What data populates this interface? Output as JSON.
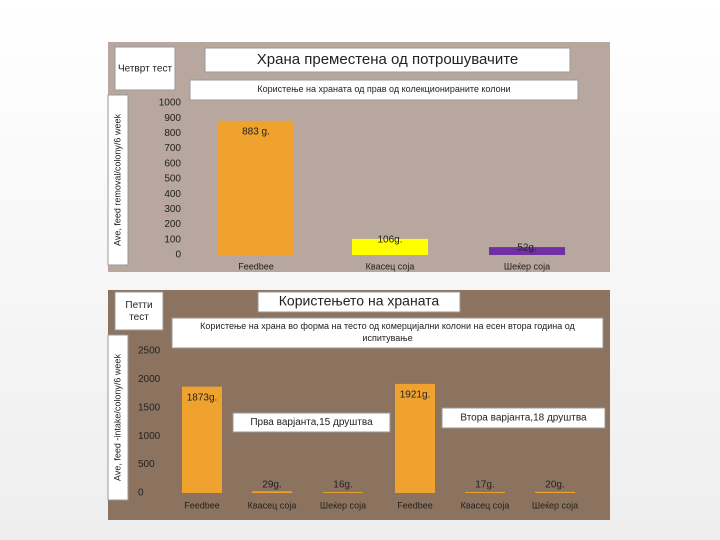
{
  "chart_data": [
    {
      "type": "bar",
      "panel_label": "Четврт тест",
      "title": "Храна преместена од потрошувачите",
      "subtitle": "Користење на храната од прав од колекционираните колони",
      "y_label": "Ave, feed removal/colony/6 week",
      "categories": [
        "Feedbee",
        "Квасец соја",
        "Шеќер соја"
      ],
      "values": [
        883,
        106,
        52
      ],
      "value_labels": [
        "883 g.",
        "106g.",
        "52g."
      ],
      "colors": [
        "#f0a22e",
        "#ffff00",
        "#7030a0"
      ],
      "ylim": [
        0,
        1000
      ],
      "yticks": [
        0,
        100,
        200,
        300,
        400,
        500,
        600,
        700,
        800,
        900,
        1000
      ]
    },
    {
      "type": "bar",
      "panel_label": "Петти тест",
      "title": "Користењето на храната",
      "subtitle": "Користење на храна во форма на тесто од комерцијални колони на есен втора година од испитување",
      "y_label": "Ave, feed -intake/colony/6 week",
      "categories": [
        "Feedbee",
        "Квасец соја",
        "Шеќер соја",
        "Feedbee",
        "Квасец соја",
        "Шеќер соја"
      ],
      "values": [
        1873,
        29,
        16,
        1921,
        17,
        20
      ],
      "value_labels": [
        "1873g.",
        "29g.",
        "16g.",
        "1921g.",
        "17g.",
        "20g."
      ],
      "color": "#f0a22e",
      "annotations": [
        "Прва варјанта,15 друштва",
        "Втора варјанта,18 друштва"
      ],
      "ylim": [
        0,
        2500
      ],
      "yticks": [
        0,
        500,
        1000,
        1500,
        2000,
        2500
      ]
    }
  ]
}
